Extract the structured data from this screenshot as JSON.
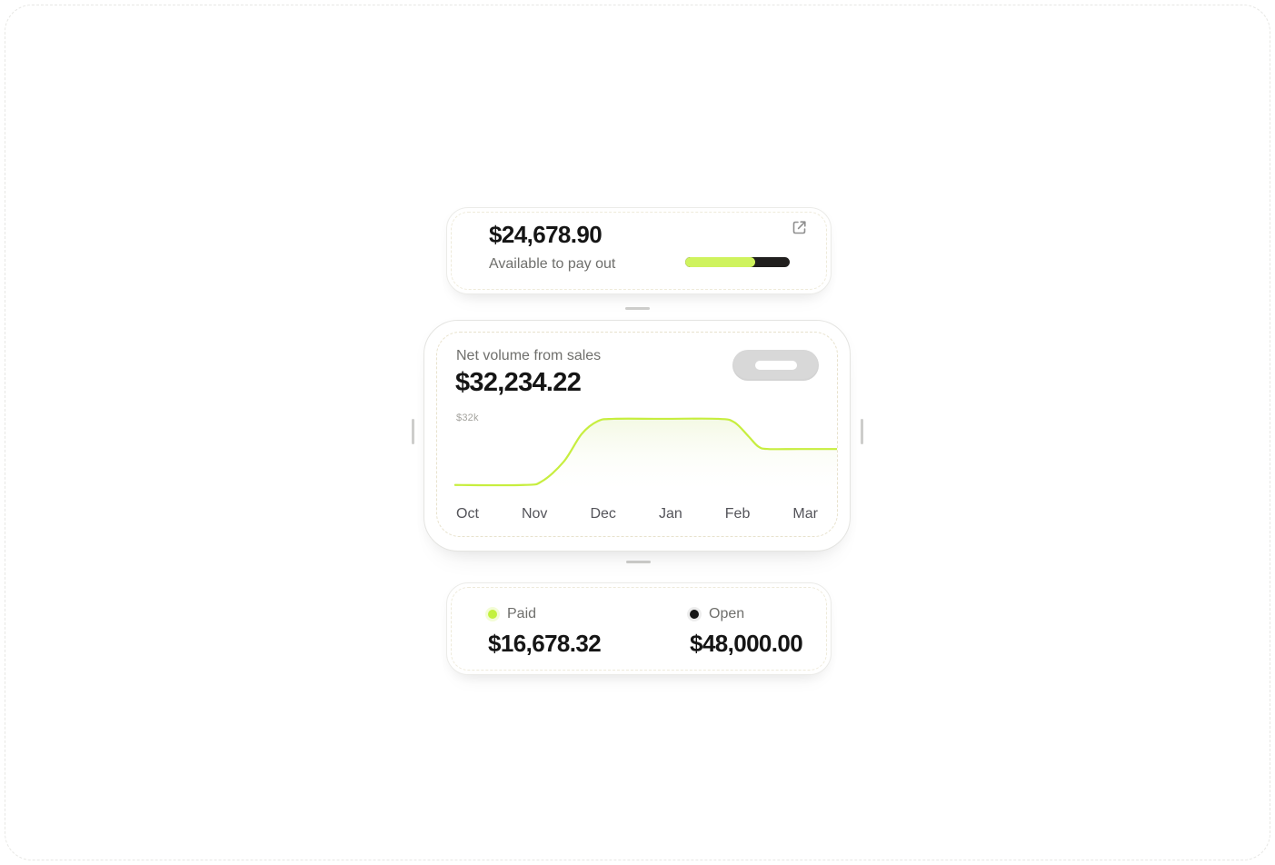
{
  "colors": {
    "accent_lime": "#c9f146",
    "progress_lime": "#cff35e",
    "progress_dark": "#211f1e",
    "text_primary": "#151515",
    "text_secondary": "#6f6f6c",
    "axis_gray": "#a3a29d",
    "icon_gray": "#8f8f8f"
  },
  "payout_card": {
    "amount": "$24,678.90",
    "label": "Available to pay out",
    "action_icon": "external-link-icon",
    "progress_percent": 67
  },
  "net_volume_card": {
    "title": "Net volume from sales",
    "amount": "$32,234.22",
    "y_axis_label": "$32k",
    "skeleton_button": "pill-placeholder",
    "months": [
      "Oct",
      "Nov",
      "Dec",
      "Jan",
      "Feb",
      "Mar"
    ]
  },
  "summary_card": {
    "paid": {
      "label": "Paid",
      "amount": "$16,678.32",
      "dot_color": "#c3f13e"
    },
    "open": {
      "label": "Open",
      "amount": "$48,000.00",
      "dot_color": "#171717"
    }
  },
  "chart_data": {
    "type": "area",
    "title": "Net volume from sales",
    "categories": [
      "Oct",
      "Nov",
      "Dec",
      "Jan",
      "Feb",
      "Mar"
    ],
    "unit": "$k",
    "ylim": [
      0,
      36
    ],
    "annotation": "$32k",
    "line_color": "#c7ee3f",
    "fill_color_top": "rgba(222,238,176,0.35)",
    "legend": "none",
    "grid": false,
    "monthly_values_k": [
      4,
      4,
      26,
      32,
      32,
      19.5
    ],
    "samples": [
      {
        "x": 0.045,
        "y": 4
      },
      {
        "x": 0.215,
        "y": 4
      },
      {
        "x": 0.26,
        "y": 5.5
      },
      {
        "x": 0.315,
        "y": 14
      },
      {
        "x": 0.36,
        "y": 26
      },
      {
        "x": 0.4,
        "y": 31.5
      },
      {
        "x": 0.44,
        "y": 32.5
      },
      {
        "x": 0.56,
        "y": 32.5
      },
      {
        "x": 0.7,
        "y": 32.5
      },
      {
        "x": 0.74,
        "y": 31
      },
      {
        "x": 0.775,
        "y": 25
      },
      {
        "x": 0.8,
        "y": 20.5
      },
      {
        "x": 0.825,
        "y": 19.5
      },
      {
        "x": 0.9,
        "y": 19.5
      },
      {
        "x": 1.0,
        "y": 19.5
      }
    ]
  }
}
